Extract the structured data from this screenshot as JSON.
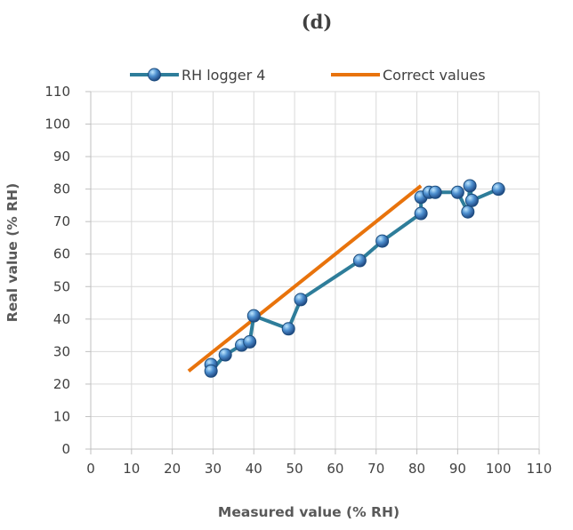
{
  "chart_data": {
    "type": "scatter",
    "title": "(d)",
    "xlabel": "Measured value (% RH)",
    "ylabel": "Real value (% RH)",
    "xlim": [
      0,
      110
    ],
    "ylim": [
      0,
      110
    ],
    "xticks": [
      "0",
      "10",
      "20",
      "30",
      "40",
      "50",
      "60",
      "70",
      "80",
      "90",
      "100",
      "110"
    ],
    "yticks": [
      "0",
      "10",
      "20",
      "30",
      "40",
      "50",
      "60",
      "70",
      "80",
      "90",
      "100",
      "110"
    ],
    "grid": true,
    "legend_position": "top",
    "series": [
      {
        "name": "RH logger 4",
        "kind": "line-markers",
        "color": "#2e7d9a",
        "points": [
          [
            29.5,
            26
          ],
          [
            29.5,
            24
          ],
          [
            33,
            29
          ],
          [
            37,
            32
          ],
          [
            39,
            33
          ],
          [
            40,
            41
          ],
          [
            48.5,
            37
          ],
          [
            51.5,
            46
          ],
          [
            66,
            58
          ],
          [
            71.5,
            64
          ],
          [
            81,
            72.5
          ],
          [
            81,
            77.5
          ],
          [
            83,
            79
          ],
          [
            84.5,
            79
          ],
          [
            90,
            79
          ],
          [
            92.5,
            73
          ],
          [
            93,
            81
          ],
          [
            93.5,
            76.5
          ],
          [
            100,
            80
          ]
        ]
      },
      {
        "name": "Correct values",
        "kind": "line",
        "color": "#e8730c",
        "points": [
          [
            24,
            24
          ],
          [
            81,
            81
          ]
        ]
      }
    ]
  }
}
